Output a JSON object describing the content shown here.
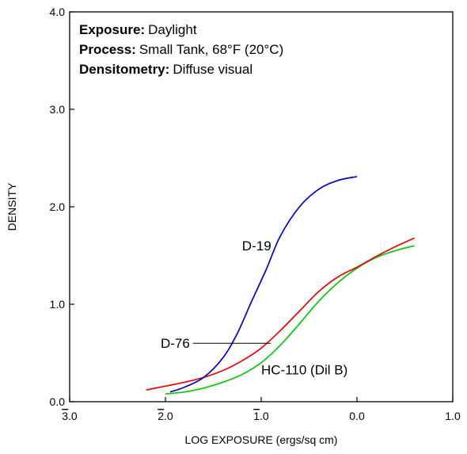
{
  "chart_data": {
    "type": "line",
    "title": "",
    "xlabel": "LOG EXPOSURE (ergs/sq cm)",
    "ylabel": "DENSITY",
    "xlim": [
      -3.0,
      1.0
    ],
    "ylim": [
      0.0,
      4.0
    ],
    "x_ticks": [
      {
        "value": -3.0,
        "bar": "3",
        "rest": ".0"
      },
      {
        "value": -2.0,
        "bar": "2",
        "rest": ".0"
      },
      {
        "value": -1.0,
        "bar": "1",
        "rest": ".0"
      },
      {
        "value": 0.0,
        "bar": "",
        "rest": "0.0"
      },
      {
        "value": 1.0,
        "bar": "",
        "rest": "1.0"
      }
    ],
    "y_ticks": [
      {
        "value": 0.0,
        "label": "0.0"
      },
      {
        "value": 1.0,
        "label": "1.0"
      },
      {
        "value": 2.0,
        "label": "2.0"
      },
      {
        "value": 3.0,
        "label": "3.0"
      },
      {
        "value": 4.0,
        "label": "4.0"
      }
    ],
    "grid": false,
    "info_box": [
      {
        "key": "Exposure:",
        "value": "Daylight"
      },
      {
        "key": "Process:",
        "value": "Small Tank, 68°F (20°C)"
      },
      {
        "key": "Densitometry:",
        "value": "Diffuse visual"
      }
    ],
    "series": [
      {
        "name": "D-19",
        "color": "#0000cc",
        "points": [
          [
            -1.95,
            0.1
          ],
          [
            -1.8,
            0.15
          ],
          [
            -1.6,
            0.25
          ],
          [
            -1.4,
            0.45
          ],
          [
            -1.25,
            0.7
          ],
          [
            -1.1,
            1.03
          ],
          [
            -0.95,
            1.35
          ],
          [
            -0.8,
            1.7
          ],
          [
            -0.6,
            2.0
          ],
          [
            -0.4,
            2.18
          ],
          [
            -0.2,
            2.27
          ],
          [
            0.0,
            2.31
          ]
        ]
      },
      {
        "name": "D-76",
        "color": "#ee0000",
        "points": [
          [
            -2.2,
            0.12
          ],
          [
            -2.0,
            0.16
          ],
          [
            -1.8,
            0.2
          ],
          [
            -1.6,
            0.25
          ],
          [
            -1.4,
            0.32
          ],
          [
            -1.2,
            0.42
          ],
          [
            -1.0,
            0.55
          ],
          [
            -0.8,
            0.73
          ],
          [
            -0.6,
            0.93
          ],
          [
            -0.4,
            1.13
          ],
          [
            -0.2,
            1.28
          ],
          [
            0.0,
            1.38
          ],
          [
            0.2,
            1.49
          ],
          [
            0.4,
            1.59
          ],
          [
            0.6,
            1.68
          ]
        ]
      },
      {
        "name": "HC-110 (Dil B)",
        "color": "#00cc00",
        "points": [
          [
            -2.0,
            0.08
          ],
          [
            -1.8,
            0.1
          ],
          [
            -1.6,
            0.14
          ],
          [
            -1.4,
            0.2
          ],
          [
            -1.2,
            0.28
          ],
          [
            -1.0,
            0.4
          ],
          [
            -0.8,
            0.58
          ],
          [
            -0.6,
            0.8
          ],
          [
            -0.4,
            1.03
          ],
          [
            -0.2,
            1.22
          ],
          [
            0.0,
            1.37
          ],
          [
            0.2,
            1.48
          ],
          [
            0.4,
            1.55
          ],
          [
            0.6,
            1.6
          ]
        ]
      }
    ],
    "annotations": [
      {
        "text": "D-19",
        "x": -1.2,
        "y": 1.6
      },
      {
        "text": "D-76",
        "x": -2.05,
        "y": 0.6,
        "leader_to": [
          -0.9,
          0.6
        ]
      },
      {
        "text": "HC-110 (Dil B)",
        "x": -1.0,
        "y": 0.33
      }
    ]
  }
}
